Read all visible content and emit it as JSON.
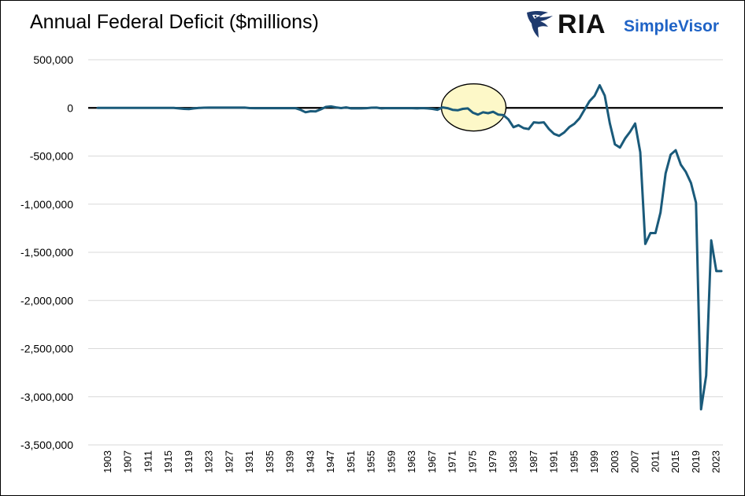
{
  "header": {
    "title": "Annual Federal Deficit ($millions)",
    "logo_ria": "RIA",
    "logo_simplevisor": "SimpleVisor",
    "logo_icon": "eagle-icon"
  },
  "colors": {
    "line": "#1a5a7a",
    "zero_line": "#000000",
    "grid": "#d9d9d9",
    "highlight_fill": "#fdf8c8",
    "highlight_stroke": "#000000",
    "brand_blue": "#1f63c6",
    "eagle": "#1e3a6e"
  },
  "chart_data": {
    "type": "line",
    "title": "Annual Federal Deficit ($millions)",
    "xlabel": "",
    "ylabel": "",
    "ylim": [
      -3500000,
      500000
    ],
    "yticks": [
      500000,
      0,
      -500000,
      -1000000,
      -1500000,
      -2000000,
      -2500000,
      -3000000,
      -3500000
    ],
    "ytick_labels": [
      "500,000",
      "0",
      "-500,000",
      "-1,000,000",
      "-1,500,000",
      "-2,000,000",
      "-2,500,000",
      "-3,000,000",
      "-3,500,000"
    ],
    "xlim": [
      1901,
      2024
    ],
    "xtick_labels": [
      "1903",
      "1907",
      "1911",
      "1915",
      "1919",
      "1923",
      "1927",
      "1931",
      "1935",
      "1939",
      "1943",
      "1947",
      "1951",
      "1955",
      "1959",
      "1963",
      "1967",
      "1971",
      "1975",
      "1979",
      "1983",
      "1987",
      "1991",
      "1995",
      "1999",
      "2003",
      "2007",
      "2011",
      "2015",
      "2019",
      "2023"
    ],
    "grid": "horizontal",
    "legend": "none",
    "highlight": {
      "label": "",
      "center_year": 1975,
      "center_value": 5000
    },
    "series": [
      {
        "x": [
          1901,
          1902,
          1903,
          1904,
          1905,
          1906,
          1907,
          1908,
          1909,
          1910,
          1911,
          1912,
          1913,
          1914,
          1915,
          1916,
          1917,
          1918,
          1919,
          1920,
          1921,
          1922,
          1923,
          1924,
          1925,
          1926,
          1927,
          1928,
          1929,
          1930,
          1931,
          1932,
          1933,
          1934,
          1935,
          1936,
          1937,
          1938,
          1939,
          1940,
          1941,
          1942,
          1943,
          1944,
          1945,
          1946,
          1947,
          1948,
          1949,
          1950,
          1951,
          1952,
          1953,
          1954,
          1955,
          1956,
          1957,
          1958,
          1959,
          1960,
          1961,
          1962,
          1963,
          1964,
          1965,
          1966,
          1967,
          1968,
          1969,
          1970,
          1971,
          1972,
          1973,
          1974,
          1975,
          1976,
          1977,
          1978,
          1979,
          1980,
          1981,
          1982,
          1983,
          1984,
          1985,
          1986,
          1987,
          1988,
          1989,
          1990,
          1991,
          1992,
          1993,
          1994,
          1995,
          1996,
          1997,
          1998,
          1999,
          2000,
          2001,
          2002,
          2003,
          2004,
          2005,
          2006,
          2007,
          2008,
          2009,
          2010,
          2011,
          2012,
          2013,
          2014,
          2015,
          2016,
          2017,
          2018,
          2019,
          2020,
          2021,
          2022,
          2023,
          2024
        ],
        "values": [
          0,
          0,
          0,
          0,
          0,
          0,
          0,
          0,
          0,
          0,
          0,
          0,
          0,
          0,
          0,
          0,
          -5000,
          -10000,
          -13000,
          -5000,
          0,
          2000,
          3000,
          3000,
          3000,
          3000,
          3000,
          3000,
          3000,
          3000,
          -2000,
          -3000,
          -3000,
          -3000,
          -3000,
          -3000,
          -3000,
          -3000,
          -3000,
          -3000,
          -20000,
          -45000,
          -35000,
          -36000,
          -15000,
          10000,
          15000,
          5000,
          -2000,
          5000,
          -5000,
          -4000,
          -5000,
          -3000,
          2000,
          3000,
          -5000,
          -2000,
          -3000,
          -3000,
          -3000,
          -3000,
          -3000,
          -5000,
          -2000,
          -5000,
          -10000,
          -20000,
          5000,
          -3000,
          -20000,
          -25000,
          -10000,
          -5000,
          -50000,
          -70000,
          -45000,
          -55000,
          -40000,
          -70000,
          -75000,
          -120000,
          -200000,
          -180000,
          -210000,
          -220000,
          -150000,
          -155000,
          -150000,
          -220000,
          -270000,
          -290000,
          -255000,
          -200000,
          -165000,
          -110000,
          -20000,
          70000,
          125000,
          235000,
          128000,
          -158000,
          -378000,
          -412000,
          -318000,
          -248000,
          -162000,
          -460000,
          -1413000,
          -1300000,
          -1300000,
          -1087000,
          -680000,
          -485000,
          -440000,
          -590000,
          -665000,
          -780000,
          -985000,
          -3130000,
          -2780000,
          -1375000,
          -1695000,
          -1695000
        ]
      }
    ]
  }
}
